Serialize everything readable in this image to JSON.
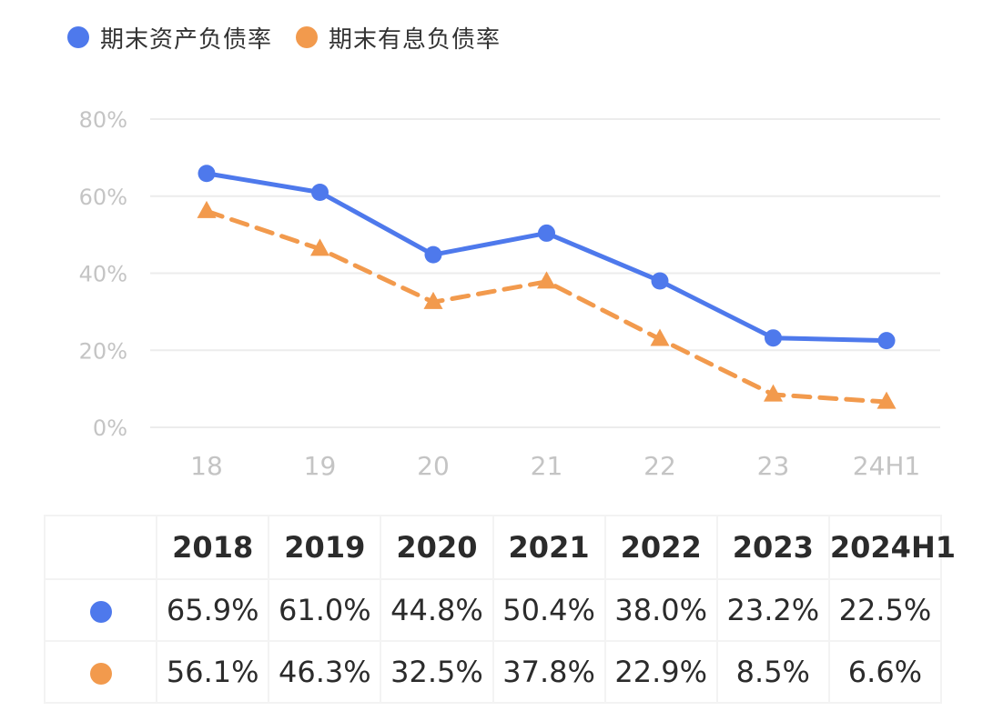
{
  "legend": [
    {
      "label": "期末资产负债率",
      "color": "#4e79ec"
    },
    {
      "label": "期末有息负债率",
      "color": "#f29a4d"
    }
  ],
  "chart_data": {
    "type": "line",
    "categories": [
      "18",
      "19",
      "20",
      "21",
      "22",
      "23",
      "24H1"
    ],
    "ylim": [
      0,
      80
    ],
    "yticks": [
      "0%",
      "20%",
      "40%",
      "60%",
      "80%"
    ],
    "ytick_values": [
      0,
      20,
      40,
      60,
      80
    ],
    "grid": true,
    "legend_position": "top-left",
    "series": [
      {
        "name": "期末资产负债率",
        "color": "#4e79ec",
        "marker": "circle",
        "line": "solid",
        "values": [
          65.9,
          61.0,
          44.8,
          50.4,
          38.0,
          23.2,
          22.5
        ]
      },
      {
        "name": "期末有息负债率",
        "color": "#f29a4d",
        "marker": "triangle",
        "line": "dashed",
        "values": [
          56.1,
          46.3,
          32.5,
          37.8,
          22.9,
          8.5,
          6.6
        ]
      }
    ]
  },
  "table": {
    "years": [
      "2018",
      "2019",
      "2020",
      "2021",
      "2022",
      "2023",
      "2024H1"
    ],
    "rows": [
      {
        "color": "#4e79ec",
        "values": [
          "65.9%",
          "61.0%",
          "44.8%",
          "50.4%",
          "38.0%",
          "23.2%",
          "22.5%"
        ]
      },
      {
        "color": "#f29a4d",
        "values": [
          "56.1%",
          "46.3%",
          "32.5%",
          "37.8%",
          "22.9%",
          "8.5%",
          "6.6%"
        ]
      }
    ]
  }
}
